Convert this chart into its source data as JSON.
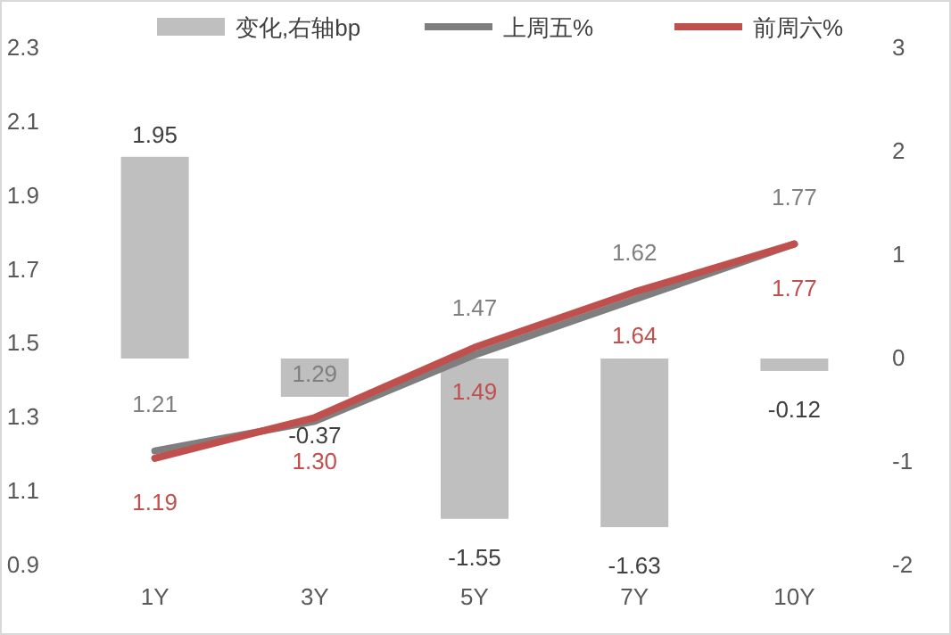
{
  "chart_data": {
    "type": "bar",
    "categories": [
      "1Y",
      "3Y",
      "5Y",
      "7Y",
      "10Y"
    ],
    "series": [
      {
        "name": "变化,右轴bp",
        "axis": "y2",
        "color": "#bfbfbf",
        "values": [
          1.95,
          -0.37,
          -1.55,
          -1.63,
          -0.12
        ],
        "value_labels": [
          "1.95",
          "-0.37",
          "-1.55",
          "-1.63",
          "-0.12"
        ]
      },
      {
        "name": "上周五%",
        "type": "line",
        "color": "#7f7f7f",
        "values": [
          1.21,
          1.29,
          1.47,
          1.62,
          1.77
        ],
        "value_labels": [
          "1.21",
          "1.29",
          "1.47",
          "1.62",
          "1.77"
        ]
      },
      {
        "name": "前周六%",
        "type": "line",
        "color": "#c0504d",
        "values": [
          1.19,
          1.3,
          1.49,
          1.64,
          1.77
        ],
        "value_labels": [
          "1.19",
          "1.30",
          "1.49",
          "1.64",
          "1.77"
        ]
      }
    ],
    "ylim": [
      0.9,
      2.3
    ],
    "yticks": [
      0.9,
      1.1,
      1.3,
      1.5,
      1.7,
      1.9,
      2.1,
      2.3
    ],
    "y2lim": [
      -2,
      3
    ],
    "y2ticks": [
      -2,
      -1,
      0,
      1,
      2,
      3
    ],
    "data_labels": true,
    "legend": "top"
  }
}
